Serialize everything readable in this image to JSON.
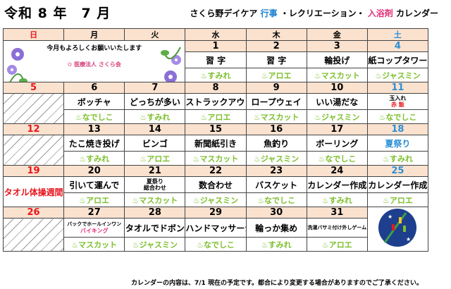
{
  "header": {
    "title": "令和 8 年　7 月",
    "org_prefix": "さくら野デイケア",
    "events_label": "行事",
    "rec_label": "・レクリエーション・",
    "bath_label": "入浴剤",
    "cal_label": "カレンダー"
  },
  "weekdays": [
    "日",
    "月",
    "火",
    "水",
    "木",
    "金",
    "土"
  ],
  "greeting": {
    "message": "今月もよろしくお願いいたします",
    "org": "医療法人 さくら会"
  },
  "weeks": [
    {
      "days": [
        "",
        "",
        "",
        "1",
        "2",
        "3",
        "4"
      ],
      "acts": [
        "",
        "",
        "",
        "習 字",
        "習 字",
        "輪投げ",
        "紙コップタワー"
      ],
      "baths": [
        "",
        "",
        "",
        "♨すみれ",
        "♨アロエ",
        "♨マスカット",
        "♨ジャスミン"
      ]
    },
    {
      "days": [
        "5",
        "6",
        "7",
        "8",
        "9",
        "10",
        "11"
      ],
      "acts": [
        "",
        "ボッチャ",
        "どっちが多い",
        "ストラックアウト",
        "ロープウェイ",
        "いい湯だな",
        "玉入れ"
      ],
      "baths": [
        "",
        "♨なでしこ",
        "♨すみれ",
        "♨アロエ",
        "♨マスカット",
        "♨ジャスミン",
        "♨なでしこ"
      ]
    },
    {
      "days": [
        "12",
        "13",
        "14",
        "15",
        "16",
        "17",
        "18"
      ],
      "acts": [
        "",
        "たこ焼き投げ",
        "ビンゴ",
        "新聞紙引き",
        "魚釣り",
        "ボーリング",
        "夏祭り"
      ],
      "baths": [
        "",
        "♨すみれ",
        "♨アロエ",
        "♨マスカット",
        "♨ジャスミン",
        "♨なでしこ",
        "♨すみれ"
      ]
    },
    {
      "days": [
        "19",
        "20",
        "21",
        "22",
        "23",
        "24",
        "25"
      ],
      "acts": [
        "",
        "引いて運んで",
        "夏祭り",
        "数合わせ",
        "バスケット",
        "カレンダー作成",
        "カレンダー作成"
      ],
      "baths": [
        "",
        "♨アロエ",
        "♨マスカット",
        "♨ジャスミン",
        "♨なでしこ",
        "♨すみれ",
        "♨アロエ"
      ]
    },
    {
      "days": [
        "26",
        "27",
        "28",
        "29",
        "30",
        "31",
        ""
      ],
      "acts": [
        "",
        "バックでホールインワン",
        "タオルでドボン",
        "ハンドマッサージ",
        "輪っか集め",
        "洗濯バサミ付け外しゲーム",
        ""
      ],
      "baths": [
        "",
        "♨マスカット",
        "♨ジャスミン",
        "♨なでしこ",
        "♨すみれ",
        "♨アロエ",
        ""
      ]
    }
  ],
  "extras": {
    "sat11_sub": "赤 飯",
    "tue21_sub": "総合わせ",
    "mon27_sub": "バイキング",
    "towel_note": "タオル体操週間"
  },
  "footer": "カレンダーの内容は、7/1 現在の予定です。都合により変更する場合がありますのでご了承ください。",
  "colors": {
    "header_bg": "#fbe2cf",
    "sunday": "#e8151c",
    "saturday": "#2b8fd6",
    "bath": "#7cbf2c"
  }
}
